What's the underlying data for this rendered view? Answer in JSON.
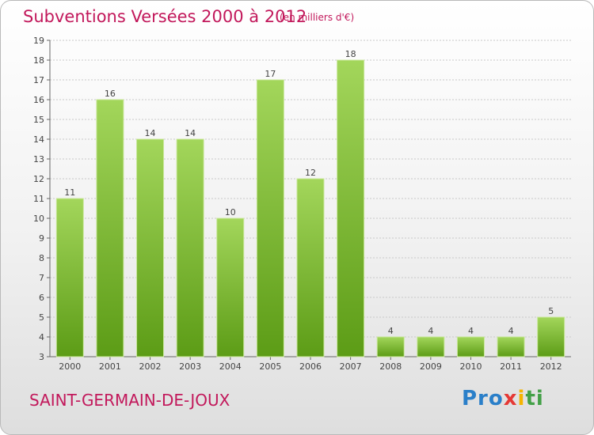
{
  "header": {
    "title": "Subventions Versées 2000 à 2012",
    "unit": "(en milliers d'€)"
  },
  "footer": {
    "commune": "SAINT-GERMAIN-DE-JOUX",
    "logo_text": "Proxiti"
  },
  "colors": {
    "title": "#c2185b",
    "bar_top": "#9fd355",
    "bar_bottom": "#5f9e18",
    "gridline": "#cccccc"
  },
  "chart_data": {
    "type": "bar",
    "title": "Subventions Versées 2000 à 2012",
    "subtitle": "(en milliers d'€)",
    "categories": [
      "2000",
      "2001",
      "2002",
      "2003",
      "2004",
      "2005",
      "2006",
      "2007",
      "2008",
      "2009",
      "2010",
      "2011",
      "2012"
    ],
    "values": [
      11,
      16,
      14,
      14,
      10,
      17,
      12,
      18,
      4,
      4,
      4,
      4,
      5
    ],
    "ylim": [
      3,
      19
    ],
    "yticks": [
      3,
      4,
      5,
      6,
      7,
      8,
      9,
      10,
      11,
      12,
      13,
      14,
      15,
      16,
      17,
      18,
      19
    ],
    "grid": true,
    "legend": "none"
  }
}
